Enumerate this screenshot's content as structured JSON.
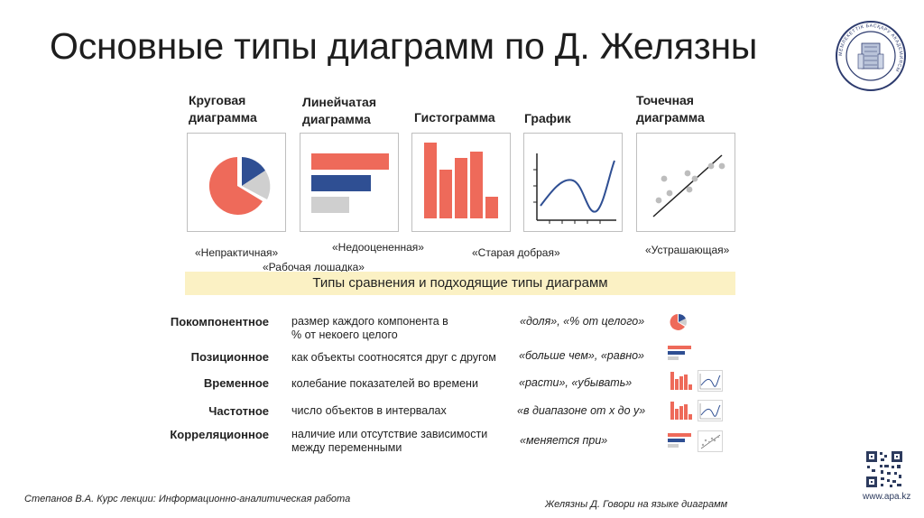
{
  "slide": {
    "title": "Основные типы диаграмм по Д. Желязны",
    "logo": {
      "icon": "university-seal-icon",
      "seal_text": "МЕМЛЕКЕТТІК БАСҚАРУ АКАДЕМИЯСЫ"
    },
    "colors": {
      "red": "#ee6a5a",
      "blue": "#2f4f93",
      "gray": "#cfcfcf",
      "band": "#fbf1c4"
    }
  },
  "chart_types": [
    {
      "label": "Круговая\nдиаграмма",
      "nickname": "«Непрактичная»",
      "icon": "pie-chart-icon"
    },
    {
      "label": "Линейчатая\nдиаграмма",
      "nickname": "«Рабочая лошадка»",
      "icon": "bar-chart-icon"
    },
    {
      "label": "Гистограмма",
      "nickname": "«Недооцененная»",
      "icon": "histogram-icon"
    },
    {
      "label": "График",
      "nickname": "«Старая добрая»",
      "icon": "line-graph-icon"
    },
    {
      "label": "Точечная\nдиаграмма",
      "nickname": "«Устрашающая»",
      "icon": "scatter-plot-icon"
    }
  ],
  "comparison": {
    "header": "Типы сравнения и подходящие типы диаграмм",
    "rows": [
      {
        "name": "Покомпонентное",
        "description": "размер каждого компонента в\n% от некоего целого",
        "phrases": "«доля», «% от целого»",
        "icons": [
          "pie-chart-icon"
        ]
      },
      {
        "name": "Позиционное",
        "description": "как объекты соотносятся друг с другом",
        "phrases": "«больше чем», «равно»",
        "icons": [
          "bar-chart-icon"
        ]
      },
      {
        "name": "Временное",
        "description": "колебание показателей во времени",
        "phrases": "«расти», «убывать»",
        "icons": [
          "histogram-icon",
          "line-graph-icon"
        ]
      },
      {
        "name": "Частотное",
        "description": "число объектов в интервалах",
        "phrases": "«в диапазоне от х до у»",
        "icons": [
          "histogram-icon",
          "line-graph-icon"
        ]
      },
      {
        "name": "Корреляционное",
        "description": "наличие или отсутствие зависимости\nмежду переменными",
        "phrases": "«меняется при»",
        "icons": [
          "bar-chart-icon",
          "scatter-plot-icon"
        ]
      }
    ]
  },
  "footer": {
    "left": "Степанов В.А. Курс лекции: Информационно-аналитическая работа",
    "right": "Желязны Д. Говори на языке диаграмм",
    "url": "www.apa.kz",
    "qr_icon": "qr-code-icon"
  }
}
